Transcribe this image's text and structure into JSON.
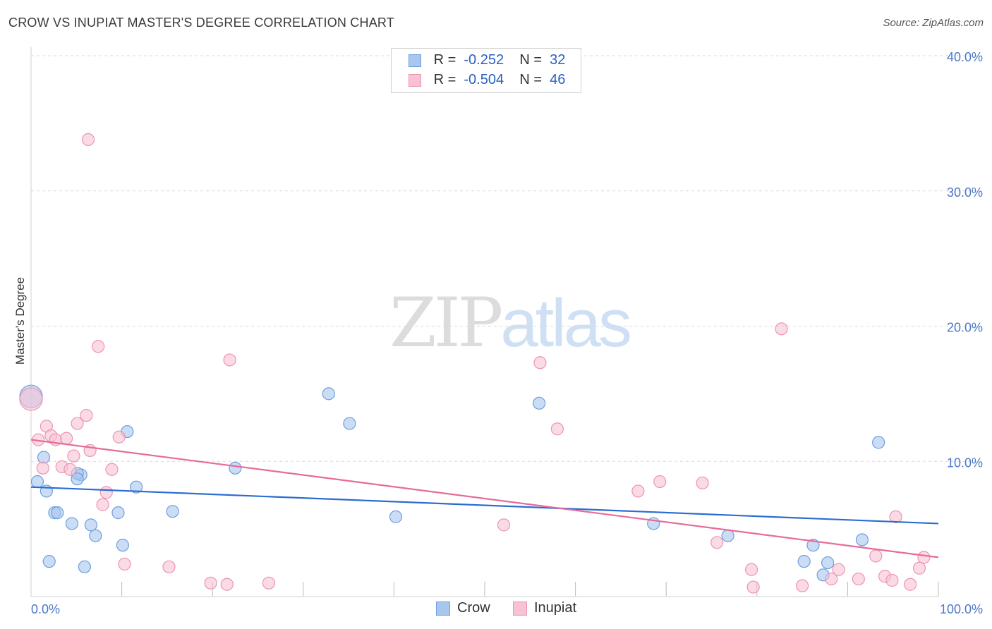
{
  "header": {
    "title": "CROW VS INUPIAT MASTER'S DEGREE CORRELATION CHART",
    "source": "Source: ZipAtlas.com"
  },
  "watermark": {
    "zip": "ZIP",
    "atlas": "atlas"
  },
  "legend_stats": [
    {
      "r_label": "R =",
      "r_value": "-0.252",
      "n_label": "N =",
      "n_value": "32",
      "color": "#a9c6ef",
      "border": "#6f9de0"
    },
    {
      "r_label": "R =",
      "r_value": "-0.504",
      "n_label": "N =",
      "n_value": "46",
      "color": "#f7c3d3",
      "border": "#ee93b0"
    }
  ],
  "bottom_legend": [
    {
      "label": "Crow",
      "color": "#a9c6ef",
      "border": "#6f9de0"
    },
    {
      "label": "Inupiat",
      "color": "#f7c3d3",
      "border": "#ee93b0"
    }
  ],
  "colors": {
    "crow_fill": "#a9c6ef",
    "crow_stroke": "#6f9de0",
    "crow_line": "#2a6dd0",
    "inupiat_fill": "#f7c3d3",
    "inupiat_stroke": "#ee93b0",
    "inupiat_line": "#e86a98",
    "grid": "#d9d9d9",
    "axis_text": "#4a78c8"
  },
  "chart_data": {
    "type": "scatter",
    "title": "CROW VS INUPIAT MASTER'S DEGREE CORRELATION CHART",
    "xlabel": "",
    "ylabel": "Master's Degree",
    "xlim": [
      0,
      100
    ],
    "ylim": [
      0,
      40
    ],
    "x_tick_labels": [
      "0.0%",
      "100.0%"
    ],
    "y_ticks": [
      10,
      20,
      30,
      40
    ],
    "y_tick_labels": [
      "10.0%",
      "20.0%",
      "30.0%",
      "40.0%"
    ],
    "grid": true,
    "legend_position": "top-center",
    "series": [
      {
        "name": "Crow",
        "trend": {
          "x": [
            0,
            100
          ],
          "y": [
            8.1,
            5.4
          ]
        },
        "points": [
          [
            0.0,
            14.8
          ],
          [
            1.4,
            10.3
          ],
          [
            0.7,
            8.5
          ],
          [
            1.7,
            7.8
          ],
          [
            2.6,
            6.2
          ],
          [
            2.9,
            6.2
          ],
          [
            5.5,
            9.0
          ],
          [
            5.1,
            9.1
          ],
          [
            5.1,
            8.7
          ],
          [
            4.5,
            5.4
          ],
          [
            6.6,
            5.3
          ],
          [
            7.1,
            4.5
          ],
          [
            9.6,
            6.2
          ],
          [
            10.1,
            3.8
          ],
          [
            10.6,
            12.2
          ],
          [
            11.6,
            8.1
          ],
          [
            15.6,
            6.3
          ],
          [
            22.5,
            9.5
          ],
          [
            32.8,
            15.0
          ],
          [
            35.1,
            12.8
          ],
          [
            40.2,
            5.9
          ],
          [
            56.0,
            14.3
          ],
          [
            68.6,
            5.4
          ],
          [
            76.8,
            4.5
          ],
          [
            86.2,
            3.8
          ],
          [
            85.2,
            2.6
          ],
          [
            87.8,
            2.5
          ],
          [
            87.3,
            1.6
          ],
          [
            91.6,
            4.2
          ],
          [
            93.4,
            11.4
          ],
          [
            2.0,
            2.6
          ],
          [
            5.9,
            2.2
          ]
        ]
      },
      {
        "name": "Inupiat",
        "trend": {
          "x": [
            0,
            100
          ],
          "y": [
            11.6,
            2.9
          ]
        },
        "points": [
          [
            0.0,
            14.6
          ],
          [
            0.8,
            11.6
          ],
          [
            1.3,
            9.5
          ],
          [
            1.7,
            12.6
          ],
          [
            2.2,
            11.9
          ],
          [
            2.7,
            11.6
          ],
          [
            3.4,
            9.6
          ],
          [
            3.9,
            11.7
          ],
          [
            4.3,
            9.4
          ],
          [
            4.7,
            10.4
          ],
          [
            5.1,
            12.8
          ],
          [
            6.1,
            13.4
          ],
          [
            6.5,
            10.8
          ],
          [
            7.4,
            18.5
          ],
          [
            6.3,
            33.8
          ],
          [
            7.9,
            6.8
          ],
          [
            8.3,
            7.7
          ],
          [
            8.9,
            9.4
          ],
          [
            9.7,
            11.8
          ],
          [
            10.3,
            2.4
          ],
          [
            15.2,
            2.2
          ],
          [
            19.8,
            1.0
          ],
          [
            21.6,
            0.9
          ],
          [
            21.9,
            17.5
          ],
          [
            26.2,
            1.0
          ],
          [
            52.1,
            5.3
          ],
          [
            56.1,
            17.3
          ],
          [
            58.0,
            12.4
          ],
          [
            66.9,
            7.8
          ],
          [
            69.3,
            8.5
          ],
          [
            74.0,
            8.4
          ],
          [
            75.6,
            4.0
          ],
          [
            79.4,
            2.0
          ],
          [
            79.6,
            0.7
          ],
          [
            82.7,
            19.8
          ],
          [
            85.0,
            0.8
          ],
          [
            88.2,
            1.3
          ],
          [
            89.0,
            2.0
          ],
          [
            91.2,
            1.3
          ],
          [
            93.1,
            3.0
          ],
          [
            94.1,
            1.5
          ],
          [
            94.9,
            1.2
          ],
          [
            95.3,
            5.9
          ],
          [
            96.9,
            0.9
          ],
          [
            97.9,
            2.1
          ],
          [
            98.4,
            2.9
          ]
        ]
      }
    ]
  }
}
